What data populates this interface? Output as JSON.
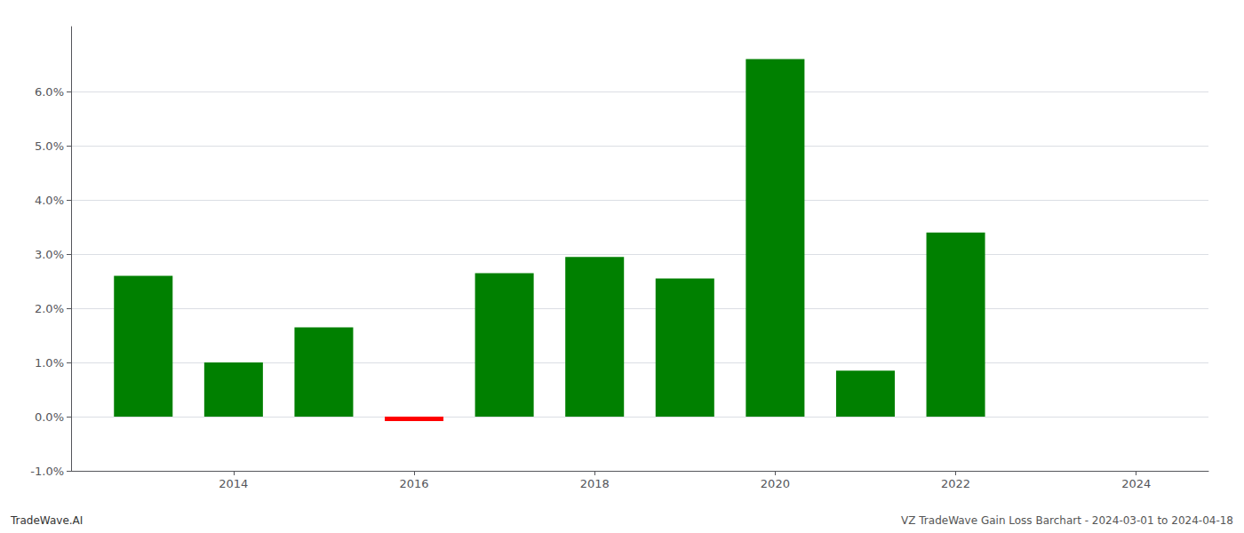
{
  "chart_data": {
    "type": "bar",
    "x": [
      2013,
      2014,
      2015,
      2016,
      2017,
      2018,
      2019,
      2020,
      2021,
      2022,
      2023
    ],
    "values": [
      0.026,
      0.01,
      0.0165,
      -0.0008,
      0.0265,
      0.0295,
      0.0255,
      0.066,
      0.0085,
      0.034,
      0.0
    ],
    "colors": [
      "#008000",
      "#008000",
      "#008000",
      "#ff0000",
      "#008000",
      "#008000",
      "#008000",
      "#008000",
      "#008000",
      "#008000",
      "#008000"
    ],
    "xlim": [
      2012.2,
      2024.8
    ],
    "xticks": [
      2014,
      2016,
      2018,
      2020,
      2022,
      2024
    ],
    "ylim": [
      -0.01,
      0.072
    ],
    "yticks": [
      {
        "value": -0.01,
        "label": "-1.0%"
      },
      {
        "value": 0.0,
        "label": "0.0%"
      },
      {
        "value": 0.01,
        "label": "1.0%"
      },
      {
        "value": 0.02,
        "label": "2.0%"
      },
      {
        "value": 0.03,
        "label": "3.0%"
      },
      {
        "value": 0.04,
        "label": "4.0%"
      },
      {
        "value": 0.05,
        "label": "5.0%"
      },
      {
        "value": 0.06,
        "label": "6.0%"
      }
    ],
    "grid": true,
    "annotations": [
      "TradeWave.AI",
      "VZ TradeWave Gain Loss Barchart - 2024-03-01 to 2024-04-18"
    ]
  }
}
